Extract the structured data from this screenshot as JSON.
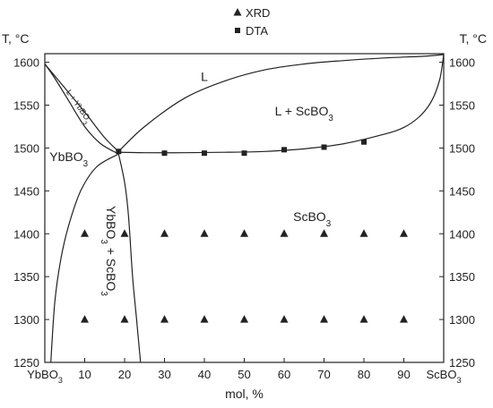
{
  "chart_data": {
    "type": "scatter",
    "title": "",
    "xlabel": "mol, %",
    "ylabel_left": "T, °C",
    "ylabel_right": "T, °C",
    "xlim": [
      0,
      100
    ],
    "ylim": [
      1250,
      1610
    ],
    "x_ticks": [
      {
        "value": 0,
        "label": "YbBO",
        "sub": "3"
      },
      {
        "value": 10,
        "label": "10",
        "sub": ""
      },
      {
        "value": 20,
        "label": "20",
        "sub": ""
      },
      {
        "value": 30,
        "label": "30",
        "sub": ""
      },
      {
        "value": 40,
        "label": "40",
        "sub": ""
      },
      {
        "value": 50,
        "label": "50",
        "sub": ""
      },
      {
        "value": 60,
        "label": "60",
        "sub": ""
      },
      {
        "value": 70,
        "label": "70",
        "sub": ""
      },
      {
        "value": 80,
        "label": "80",
        "sub": ""
      },
      {
        "value": 90,
        "label": "90",
        "sub": ""
      },
      {
        "value": 100,
        "label": "ScBO",
        "sub": "3"
      }
    ],
    "y_ticks": [
      1250,
      1300,
      1350,
      1400,
      1450,
      1500,
      1550,
      1600
    ],
    "legend": [
      {
        "name": "XRD",
        "marker": "triangle"
      },
      {
        "name": "DTA",
        "marker": "square"
      }
    ],
    "legend_position": "top-center",
    "series": [
      {
        "name": "XRD",
        "marker": "triangle",
        "points": [
          {
            "x": 10,
            "y": 1400
          },
          {
            "x": 20,
            "y": 1400
          },
          {
            "x": 30,
            "y": 1400
          },
          {
            "x": 40,
            "y": 1400
          },
          {
            "x": 50,
            "y": 1400
          },
          {
            "x": 60,
            "y": 1400
          },
          {
            "x": 70,
            "y": 1400
          },
          {
            "x": 80,
            "y": 1400
          },
          {
            "x": 90,
            "y": 1400
          },
          {
            "x": 10,
            "y": 1300
          },
          {
            "x": 20,
            "y": 1300
          },
          {
            "x": 30,
            "y": 1300
          },
          {
            "x": 40,
            "y": 1300
          },
          {
            "x": 50,
            "y": 1300
          },
          {
            "x": 60,
            "y": 1300
          },
          {
            "x": 70,
            "y": 1300
          },
          {
            "x": 80,
            "y": 1300
          },
          {
            "x": 90,
            "y": 1300
          }
        ]
      },
      {
        "name": "DTA",
        "marker": "square",
        "points": [
          {
            "x": 18.5,
            "y": 1496
          },
          {
            "x": 30,
            "y": 1494
          },
          {
            "x": 40,
            "y": 1494
          },
          {
            "x": 50,
            "y": 1494
          },
          {
            "x": 60,
            "y": 1498
          },
          {
            "x": 70,
            "y": 1501
          },
          {
            "x": 80,
            "y": 1507
          }
        ]
      }
    ],
    "boundaries": [
      {
        "name": "liquidus-scbo3",
        "points": [
          [
            18.5,
            1496
          ],
          [
            25,
            1525
          ],
          [
            35,
            1558
          ],
          [
            45,
            1578
          ],
          [
            55,
            1591
          ],
          [
            65,
            1598
          ],
          [
            75,
            1602
          ],
          [
            85,
            1605
          ],
          [
            95,
            1607
          ],
          [
            100,
            1609
          ]
        ]
      },
      {
        "name": "solidus-scbo3",
        "points": [
          [
            100,
            1609
          ],
          [
            99,
            1580
          ],
          [
            97,
            1555
          ],
          [
            94,
            1537
          ],
          [
            90,
            1524
          ],
          [
            85,
            1516
          ],
          [
            75,
            1505
          ],
          [
            65,
            1499
          ],
          [
            55,
            1496
          ],
          [
            45,
            1495
          ],
          [
            35,
            1494.5
          ],
          [
            25,
            1494.5
          ],
          [
            18.5,
            1495
          ]
        ]
      },
      {
        "name": "liquidus-ybbo3",
        "points": [
          [
            0,
            1598
          ],
          [
            5,
            1570
          ],
          [
            10,
            1542
          ],
          [
            15,
            1512
          ],
          [
            18.5,
            1496
          ]
        ]
      },
      {
        "name": "solidus-ybbo3",
        "points": [
          [
            0,
            1598
          ],
          [
            2,
            1585
          ],
          [
            6,
            1555
          ],
          [
            10,
            1525
          ],
          [
            14,
            1505
          ],
          [
            18.5,
            1493
          ]
        ]
      },
      {
        "name": "solvus-ybbo3",
        "points": [
          [
            18.5,
            1493
          ],
          [
            13,
            1478
          ],
          [
            9,
            1450
          ],
          [
            6,
            1410
          ],
          [
            4,
            1370
          ],
          [
            2.5,
            1320
          ],
          [
            1.5,
            1250
          ]
        ]
      },
      {
        "name": "solvus-scbo3",
        "points": [
          [
            18.5,
            1493
          ],
          [
            20,
            1460
          ],
          [
            21,
            1420
          ],
          [
            22,
            1350
          ],
          [
            23,
            1300
          ],
          [
            24,
            1250
          ]
        ]
      }
    ],
    "regions": [
      {
        "label": "L",
        "sub": "",
        "x": 40,
        "y": 1578,
        "style": "region"
      },
      {
        "label": "L + ScBO",
        "sub": "3",
        "x": 65,
        "y": 1538,
        "style": "region"
      },
      {
        "label": "YbBO",
        "sub": "3",
        "x": 6,
        "y": 1485,
        "style": "region"
      },
      {
        "label": "ScBO",
        "sub": "3",
        "x": 67,
        "y": 1415,
        "style": "region"
      },
      {
        "label": "L + YbBO",
        "sub": "3",
        "x": 8,
        "y": 1547,
        "style": "region-small",
        "rotate": 55
      },
      {
        "label": "YbBO",
        "sub": "3",
        "label2": " + ScBO",
        "sub2": "3",
        "x": 15.5,
        "y": 1380,
        "style": "region",
        "rotate": 90
      }
    ]
  }
}
